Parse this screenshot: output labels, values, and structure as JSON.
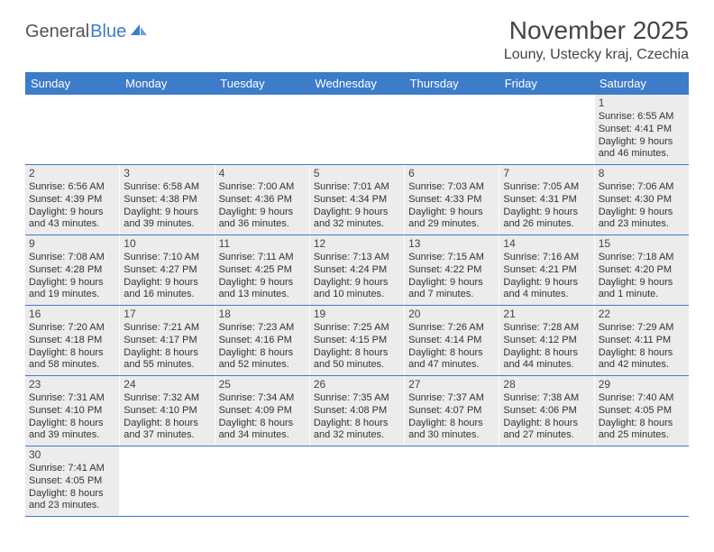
{
  "logo": {
    "text1": "General",
    "text2": "Blue",
    "icon_color": "#3d7cc9"
  },
  "title": "November 2025",
  "location": "Louny, Ustecky kraj, Czechia",
  "header_bg": "#3d7cc9",
  "header_fg": "#ffffff",
  "cell_bg": "#ececec",
  "border_color": "#3d7cc9",
  "day_headers": [
    "Sunday",
    "Monday",
    "Tuesday",
    "Wednesday",
    "Thursday",
    "Friday",
    "Saturday"
  ],
  "weeks": [
    [
      {
        "blank": true
      },
      {
        "blank": true
      },
      {
        "blank": true
      },
      {
        "blank": true
      },
      {
        "blank": true
      },
      {
        "blank": true
      },
      {
        "n": "1",
        "sr": "Sunrise: 6:55 AM",
        "ss": "Sunset: 4:41 PM",
        "d1": "Daylight: 9 hours",
        "d2": "and 46 minutes."
      }
    ],
    [
      {
        "n": "2",
        "sr": "Sunrise: 6:56 AM",
        "ss": "Sunset: 4:39 PM",
        "d1": "Daylight: 9 hours",
        "d2": "and 43 minutes."
      },
      {
        "n": "3",
        "sr": "Sunrise: 6:58 AM",
        "ss": "Sunset: 4:38 PM",
        "d1": "Daylight: 9 hours",
        "d2": "and 39 minutes."
      },
      {
        "n": "4",
        "sr": "Sunrise: 7:00 AM",
        "ss": "Sunset: 4:36 PM",
        "d1": "Daylight: 9 hours",
        "d2": "and 36 minutes."
      },
      {
        "n": "5",
        "sr": "Sunrise: 7:01 AM",
        "ss": "Sunset: 4:34 PM",
        "d1": "Daylight: 9 hours",
        "d2": "and 32 minutes."
      },
      {
        "n": "6",
        "sr": "Sunrise: 7:03 AM",
        "ss": "Sunset: 4:33 PM",
        "d1": "Daylight: 9 hours",
        "d2": "and 29 minutes."
      },
      {
        "n": "7",
        "sr": "Sunrise: 7:05 AM",
        "ss": "Sunset: 4:31 PM",
        "d1": "Daylight: 9 hours",
        "d2": "and 26 minutes."
      },
      {
        "n": "8",
        "sr": "Sunrise: 7:06 AM",
        "ss": "Sunset: 4:30 PM",
        "d1": "Daylight: 9 hours",
        "d2": "and 23 minutes."
      }
    ],
    [
      {
        "n": "9",
        "sr": "Sunrise: 7:08 AM",
        "ss": "Sunset: 4:28 PM",
        "d1": "Daylight: 9 hours",
        "d2": "and 19 minutes."
      },
      {
        "n": "10",
        "sr": "Sunrise: 7:10 AM",
        "ss": "Sunset: 4:27 PM",
        "d1": "Daylight: 9 hours",
        "d2": "and 16 minutes."
      },
      {
        "n": "11",
        "sr": "Sunrise: 7:11 AM",
        "ss": "Sunset: 4:25 PM",
        "d1": "Daylight: 9 hours",
        "d2": "and 13 minutes."
      },
      {
        "n": "12",
        "sr": "Sunrise: 7:13 AM",
        "ss": "Sunset: 4:24 PM",
        "d1": "Daylight: 9 hours",
        "d2": "and 10 minutes."
      },
      {
        "n": "13",
        "sr": "Sunrise: 7:15 AM",
        "ss": "Sunset: 4:22 PM",
        "d1": "Daylight: 9 hours",
        "d2": "and 7 minutes."
      },
      {
        "n": "14",
        "sr": "Sunrise: 7:16 AM",
        "ss": "Sunset: 4:21 PM",
        "d1": "Daylight: 9 hours",
        "d2": "and 4 minutes."
      },
      {
        "n": "15",
        "sr": "Sunrise: 7:18 AM",
        "ss": "Sunset: 4:20 PM",
        "d1": "Daylight: 9 hours",
        "d2": "and 1 minute."
      }
    ],
    [
      {
        "n": "16",
        "sr": "Sunrise: 7:20 AM",
        "ss": "Sunset: 4:18 PM",
        "d1": "Daylight: 8 hours",
        "d2": "and 58 minutes."
      },
      {
        "n": "17",
        "sr": "Sunrise: 7:21 AM",
        "ss": "Sunset: 4:17 PM",
        "d1": "Daylight: 8 hours",
        "d2": "and 55 minutes."
      },
      {
        "n": "18",
        "sr": "Sunrise: 7:23 AM",
        "ss": "Sunset: 4:16 PM",
        "d1": "Daylight: 8 hours",
        "d2": "and 52 minutes."
      },
      {
        "n": "19",
        "sr": "Sunrise: 7:25 AM",
        "ss": "Sunset: 4:15 PM",
        "d1": "Daylight: 8 hours",
        "d2": "and 50 minutes."
      },
      {
        "n": "20",
        "sr": "Sunrise: 7:26 AM",
        "ss": "Sunset: 4:14 PM",
        "d1": "Daylight: 8 hours",
        "d2": "and 47 minutes."
      },
      {
        "n": "21",
        "sr": "Sunrise: 7:28 AM",
        "ss": "Sunset: 4:12 PM",
        "d1": "Daylight: 8 hours",
        "d2": "and 44 minutes."
      },
      {
        "n": "22",
        "sr": "Sunrise: 7:29 AM",
        "ss": "Sunset: 4:11 PM",
        "d1": "Daylight: 8 hours",
        "d2": "and 42 minutes."
      }
    ],
    [
      {
        "n": "23",
        "sr": "Sunrise: 7:31 AM",
        "ss": "Sunset: 4:10 PM",
        "d1": "Daylight: 8 hours",
        "d2": "and 39 minutes."
      },
      {
        "n": "24",
        "sr": "Sunrise: 7:32 AM",
        "ss": "Sunset: 4:10 PM",
        "d1": "Daylight: 8 hours",
        "d2": "and 37 minutes."
      },
      {
        "n": "25",
        "sr": "Sunrise: 7:34 AM",
        "ss": "Sunset: 4:09 PM",
        "d1": "Daylight: 8 hours",
        "d2": "and 34 minutes."
      },
      {
        "n": "26",
        "sr": "Sunrise: 7:35 AM",
        "ss": "Sunset: 4:08 PM",
        "d1": "Daylight: 8 hours",
        "d2": "and 32 minutes."
      },
      {
        "n": "27",
        "sr": "Sunrise: 7:37 AM",
        "ss": "Sunset: 4:07 PM",
        "d1": "Daylight: 8 hours",
        "d2": "and 30 minutes."
      },
      {
        "n": "28",
        "sr": "Sunrise: 7:38 AM",
        "ss": "Sunset: 4:06 PM",
        "d1": "Daylight: 8 hours",
        "d2": "and 27 minutes."
      },
      {
        "n": "29",
        "sr": "Sunrise: 7:40 AM",
        "ss": "Sunset: 4:05 PM",
        "d1": "Daylight: 8 hours",
        "d2": "and 25 minutes."
      }
    ],
    [
      {
        "n": "30",
        "sr": "Sunrise: 7:41 AM",
        "ss": "Sunset: 4:05 PM",
        "d1": "Daylight: 8 hours",
        "d2": "and 23 minutes."
      },
      {
        "blank": true
      },
      {
        "blank": true
      },
      {
        "blank": true
      },
      {
        "blank": true
      },
      {
        "blank": true
      },
      {
        "blank": true
      }
    ]
  ]
}
